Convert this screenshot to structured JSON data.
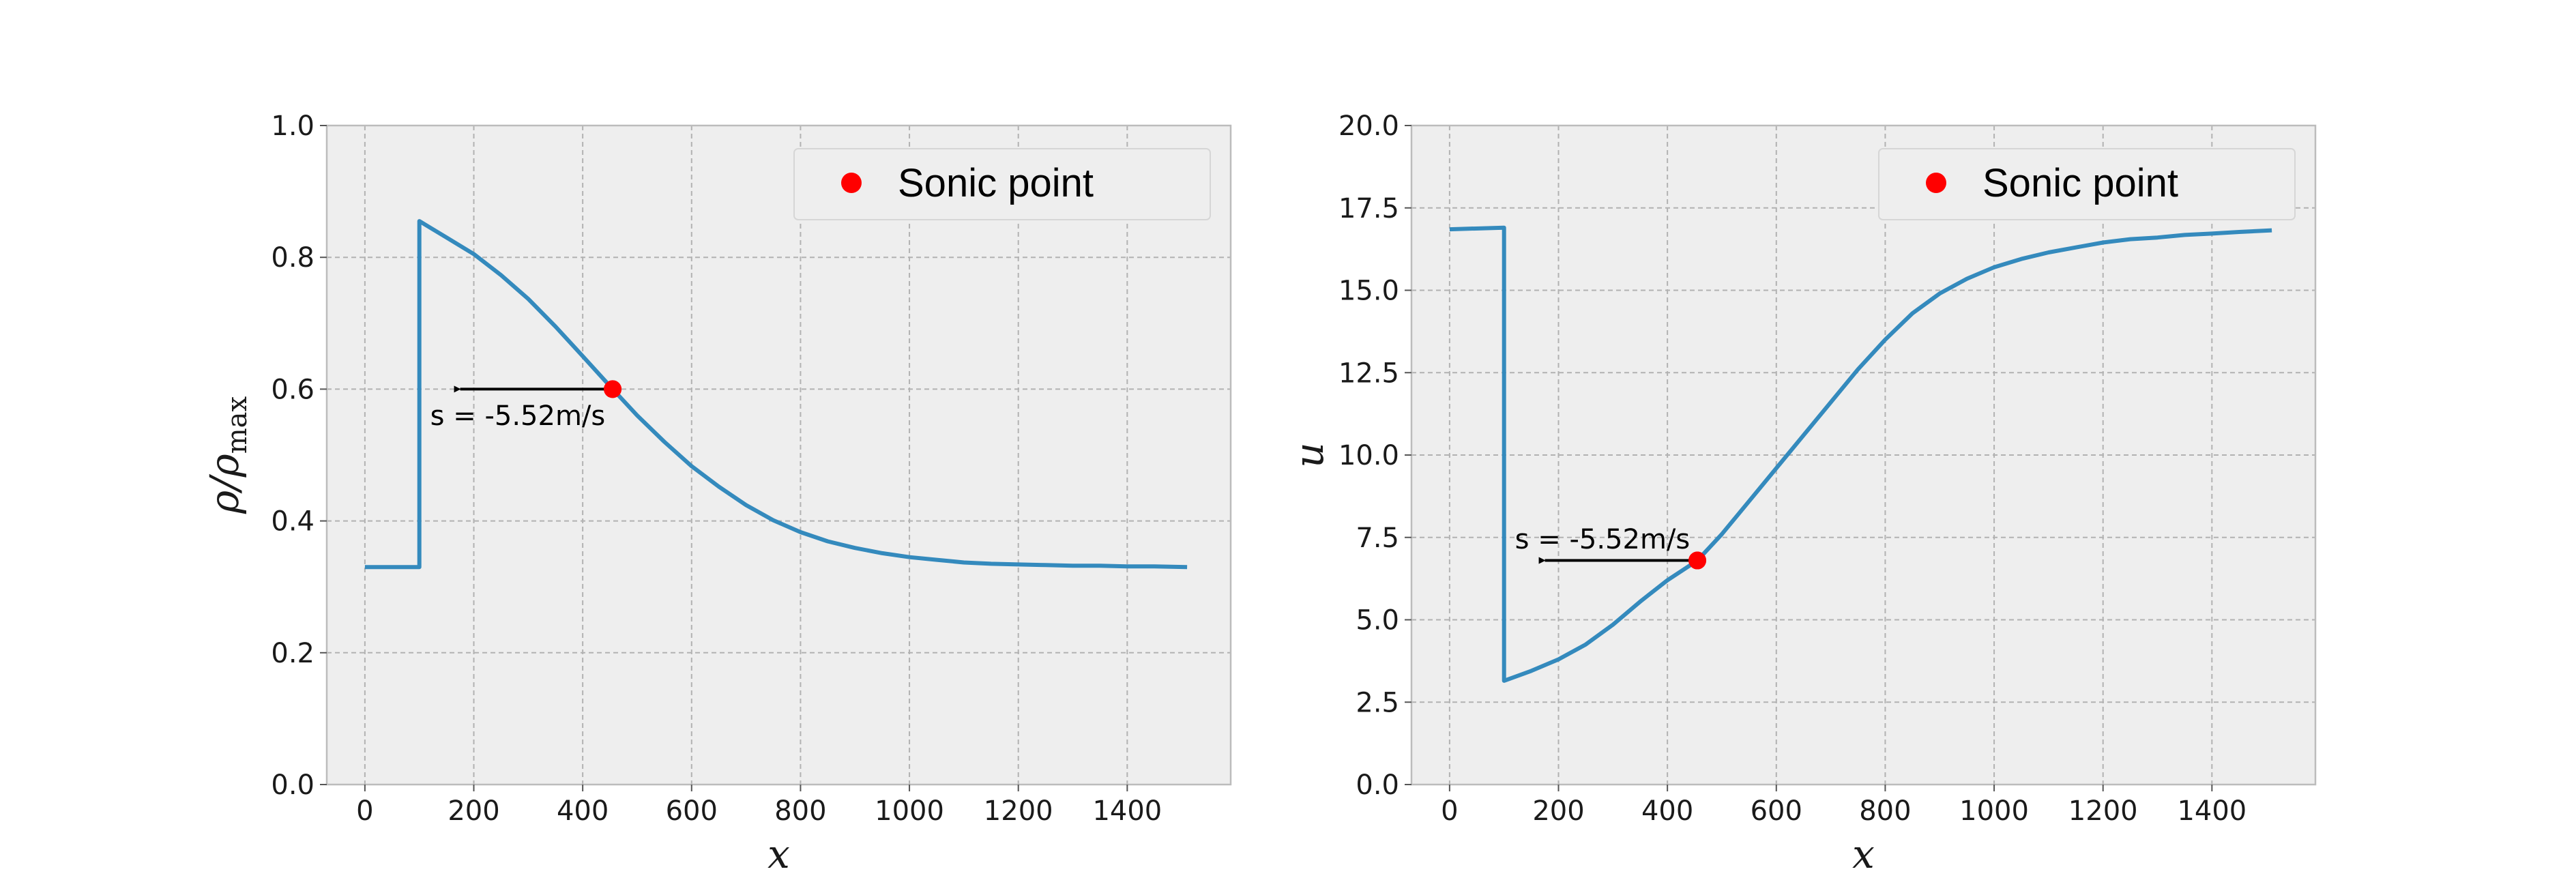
{
  "chart_data": [
    {
      "type": "line",
      "title": "",
      "xlabel": "x",
      "ylabel": "ρ/ρmax",
      "ylabel_parts": {
        "main": "ρ/ρ",
        "sub": "max"
      },
      "xlim": [
        -70,
        1590
      ],
      "ylim": [
        0,
        1
      ],
      "xticks": [
        0,
        200,
        400,
        600,
        800,
        1000,
        1200,
        1400
      ],
      "xtick_labels": [
        "0",
        "200",
        "400",
        "600",
        "800",
        "1000",
        "1200",
        "1400"
      ],
      "yticks": [
        0,
        0.2,
        0.4,
        0.6,
        0.8,
        1.0
      ],
      "ytick_labels": [
        "0.0",
        "0.2",
        "0.4",
        "0.6",
        "0.8",
        "1.0"
      ],
      "grid": true,
      "legend_position": "top-right",
      "series": [
        {
          "color": "#348ABD",
          "x": [
            0,
            100,
            100,
            150,
            200,
            250,
            300,
            350,
            400,
            455,
            500,
            550,
            600,
            650,
            700,
            750,
            800,
            850,
            900,
            950,
            1000,
            1050,
            1100,
            1150,
            1200,
            1250,
            1300,
            1350,
            1400,
            1450,
            1510
          ],
          "y": [
            0.33,
            0.33,
            0.855,
            0.83,
            0.805,
            0.773,
            0.737,
            0.695,
            0.65,
            0.6,
            0.56,
            0.52,
            0.483,
            0.452,
            0.424,
            0.401,
            0.383,
            0.369,
            0.359,
            0.351,
            0.345,
            0.341,
            0.337,
            0.335,
            0.334,
            0.333,
            0.332,
            0.332,
            0.331,
            0.331,
            0.33
          ]
        },
        {
          "name": "Sonic point",
          "type": "scatter",
          "color": "#ff0000",
          "x": [
            455
          ],
          "y": [
            0.6
          ]
        }
      ],
      "annotations": [
        {
          "text": "s = -5.52m/s",
          "arrow_from": [
            455,
            0.6
          ],
          "arrow_to": [
            175,
            0.6
          ],
          "text_at": [
            120,
            0.56
          ]
        }
      ]
    },
    {
      "type": "line",
      "title": "",
      "xlabel": "x",
      "ylabel": "u",
      "xlim": [
        -70,
        1590
      ],
      "ylim": [
        0,
        20
      ],
      "xticks": [
        0,
        200,
        400,
        600,
        800,
        1000,
        1200,
        1400
      ],
      "xtick_labels": [
        "0",
        "200",
        "400",
        "600",
        "800",
        "1000",
        "1200",
        "1400"
      ],
      "yticks": [
        0,
        2.5,
        5,
        7.5,
        10,
        12.5,
        15,
        17.5,
        20
      ],
      "ytick_labels": [
        "0.0",
        "2.5",
        "5.0",
        "7.5",
        "10.0",
        "12.5",
        "15.0",
        "17.5",
        "20.0"
      ],
      "grid": true,
      "legend_position": "top-right",
      "series": [
        {
          "color": "#348ABD",
          "x": [
            0,
            100,
            100,
            150,
            200,
            250,
            300,
            350,
            400,
            455,
            500,
            550,
            600,
            650,
            700,
            750,
            800,
            850,
            900,
            950,
            1000,
            1050,
            1100,
            1150,
            1200,
            1250,
            1300,
            1350,
            1400,
            1450,
            1510
          ],
          "y": [
            16.85,
            16.9,
            3.15,
            3.45,
            3.8,
            4.25,
            4.85,
            5.55,
            6.2,
            6.8,
            7.6,
            8.6,
            9.6,
            10.6,
            11.6,
            12.6,
            13.5,
            14.3,
            14.9,
            15.35,
            15.7,
            15.95,
            16.15,
            16.3,
            16.45,
            16.55,
            16.6,
            16.68,
            16.72,
            16.77,
            16.82
          ]
        },
        {
          "name": "Sonic point",
          "type": "scatter",
          "color": "#ff0000",
          "x": [
            455
          ],
          "y": [
            6.8
          ]
        }
      ],
      "annotations": [
        {
          "text": "s = -5.52m/s",
          "arrow_from": [
            455,
            6.8
          ],
          "arrow_to": [
            175,
            6.8
          ],
          "text_at": [
            120,
            7.45
          ]
        }
      ]
    }
  ]
}
